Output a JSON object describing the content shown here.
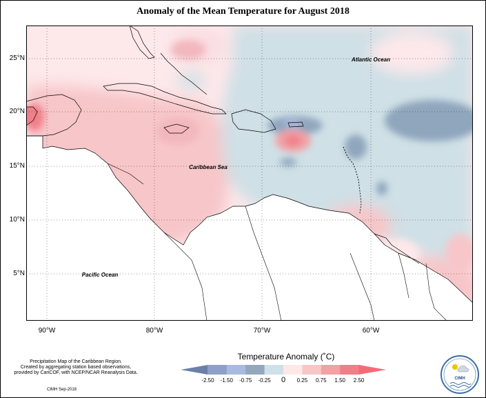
{
  "title": "Anomaly of the Mean Temperature for August 2018",
  "axes": {
    "lat_labels": [
      "25°N",
      "20°N",
      "15°N",
      "10°N",
      "5°N"
    ],
    "lon_labels": [
      "90°W",
      "80°W",
      "70°W",
      "60°W"
    ]
  },
  "labels": {
    "atlantic": "Atlantic Ocean",
    "caribbean": "Caribbean Sea",
    "pacific": "Pacific Ocean"
  },
  "legend": {
    "title": "Temperature Anomaly (˚C)",
    "ticks": [
      "-2.50",
      "-1.50",
      "-0.75",
      "-0.25",
      "0",
      "0.25",
      "0.75",
      "1.50",
      "2.50"
    ],
    "colors": [
      "#6b7fa8",
      "#8fa0c8",
      "#aab9e0",
      "#93a8bc",
      "#cfe0e8",
      "#fde8e8",
      "#f7c7c8",
      "#f2a1a5",
      "#f07f89",
      "#f46b78"
    ]
  },
  "credit": {
    "line1": "Precipitation Map of the Caribbean Region.",
    "line2": "Created by aggregating station based observations,",
    "line3": "provided by CariCOF, with NCEP/NCAR Reanalysis Data.",
    "stamp": "CIMH Sep-2018"
  },
  "logo": {
    "text": "CIMH"
  }
}
